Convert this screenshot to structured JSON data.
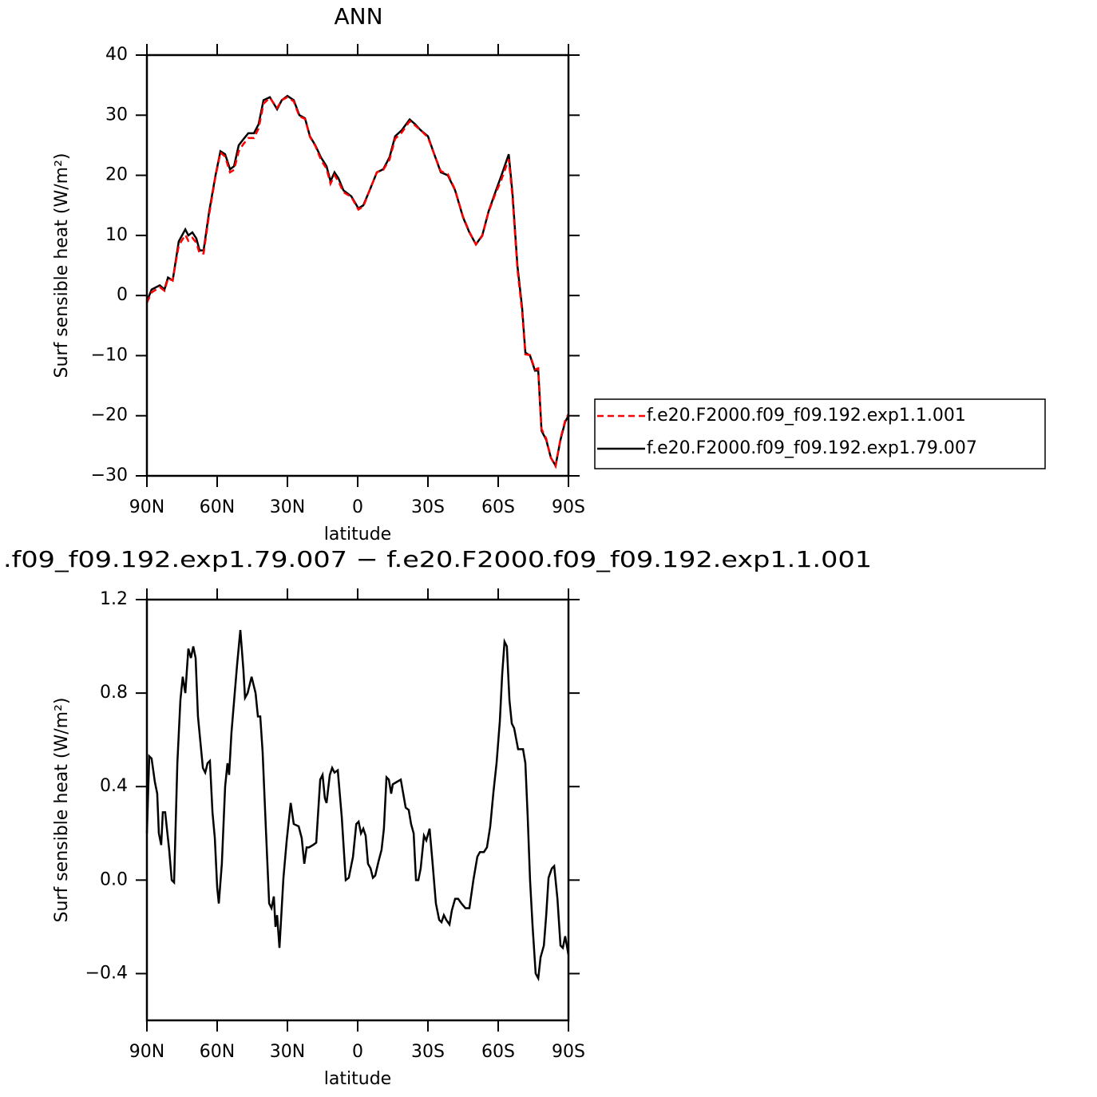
{
  "chart_data": [
    {
      "type": "line",
      "title": "ANN",
      "xlabel": "latitude",
      "ylabel": "Surf sensible heat (W/m²)",
      "xlim": [
        90,
        -90
      ],
      "xticks": [
        {
          "value": 90,
          "label": "90N"
        },
        {
          "value": 60,
          "label": "60N"
        },
        {
          "value": 30,
          "label": "30N"
        },
        0,
        {
          "value": -30,
          "label": "30S"
        },
        {
          "value": -60,
          "label": "60S"
        },
        {
          "value": -90,
          "label": "90S"
        }
      ],
      "ylim": [
        -30,
        40
      ],
      "yticks": [
        {
          "value": -30,
          "label": "−30"
        },
        {
          "value": -20,
          "label": "−20"
        },
        {
          "value": -10,
          "label": "−10"
        },
        0,
        10,
        20,
        30,
        40
      ],
      "grid": false,
      "legend": "right",
      "x": [
        90,
        88,
        84.5,
        82.5,
        81,
        79,
        76.4,
        73.6,
        72.3,
        70.6,
        68.9,
        67.5,
        65.8,
        63.4,
        60.7,
        58.6,
        56.6,
        54.5,
        52.8,
        50.8,
        48.8,
        46.7,
        44.3,
        42.3,
        40.2,
        37.5,
        34.4,
        32.4,
        30,
        27.3,
        24.9,
        22.5,
        20.4,
        18.1,
        15.7,
        13.3,
        11.6,
        9.9,
        8.2,
        6.1,
        2.7,
        -0.3,
        -2.4,
        -5.1,
        -8.2,
        -10.9,
        -13.6,
        -16,
        -18.8,
        -22.2,
        -24.5,
        -26.9,
        -30,
        -32.7,
        -35.5,
        -38.5,
        -41.6,
        -45,
        -47.7,
        -50.5,
        -53.2,
        -55.9,
        -58.6,
        -61.4,
        -64.5,
        -66.1,
        -68.2,
        -70.2,
        -71.6,
        -73.6,
        -75.7,
        -77.1,
        -78.5,
        -80.5,
        -82.5,
        -84.5,
        -86.6,
        -88.6,
        -90
      ],
      "series": [
        {
          "name": "f.e20.F2000.f09_f09.192.exp1.1.001",
          "color": "#ff0000",
          "dash": "dashed",
          "values": [
            -1.2,
            0.5,
            1.4,
            0.8,
            2.8,
            2.5,
            8.3,
            10.1,
            9.1,
            9.6,
            8.8,
            7,
            7,
            13.5,
            19.8,
            23.8,
            23.1,
            20.5,
            20.9,
            24,
            25.2,
            26.2,
            26.2,
            27.8,
            31.9,
            32.9,
            31.2,
            32.5,
            33.0,
            32.3,
            29.8,
            29.4,
            26.4,
            24.9,
            22.6,
            21.1,
            18.6,
            20.0,
            19.0,
            17.2,
            16.4,
            14.3,
            14.8,
            17.5,
            20.5,
            20.9,
            22.6,
            26.1,
            27.1,
            29.0,
            28.3,
            27.5,
            26.3,
            23.5,
            20.7,
            20.2,
            17.6,
            13.1,
            10.6,
            8.5,
            9.9,
            13.9,
            16.7,
            19.3,
            22.7,
            16.4,
            4.4,
            -2.6,
            -9.8,
            -9.9,
            -12.3,
            -12.1,
            -22.2,
            -23.8,
            -27,
            -28.4,
            -23.8,
            -20.8,
            -19.7
          ]
        },
        {
          "name": "f.e20.F2000.f09_f09.192.exp1.79.007",
          "color": "#000000",
          "dash": "solid",
          "values": [
            -1,
            1,
            1.7,
            1,
            3,
            2.5,
            9,
            11,
            10,
            10.5,
            9.5,
            7.5,
            7.5,
            14,
            20,
            24,
            23.5,
            21,
            21.5,
            25,
            26,
            27,
            27,
            28.5,
            32.5,
            33,
            31,
            32.5,
            33.2,
            32.5,
            30,
            29.5,
            26.5,
            25,
            23,
            21.5,
            19,
            20.5,
            19.5,
            17.5,
            16.5,
            14.5,
            15,
            17.5,
            20.5,
            21,
            23,
            26.5,
            27.5,
            29.3,
            28.5,
            27.5,
            26.5,
            23.5,
            20.5,
            20,
            17.5,
            13,
            10.5,
            8.5,
            10,
            14,
            17,
            20,
            23.5,
            17,
            5,
            -2,
            -9.5,
            -10,
            -12.5,
            -12.5,
            -22.5,
            -24,
            -27,
            -28.3,
            -24,
            -21,
            -20
          ]
        }
      ]
    },
    {
      "type": "line",
      "title": ".f09_f09.192.exp1.79.007 − f.e20.F2000.f09_f09.192.exp1.1.001",
      "xlabel": "latitude",
      "ylabel": "Surf sensible heat (W/m²)",
      "xlim": [
        90,
        -90
      ],
      "xticks": [
        {
          "value": 90,
          "label": "90N"
        },
        {
          "value": 60,
          "label": "60N"
        },
        {
          "value": 30,
          "label": "30N"
        },
        0,
        {
          "value": -30,
          "label": "30S"
        },
        {
          "value": -60,
          "label": "60S"
        },
        {
          "value": -90,
          "label": "90S"
        }
      ],
      "ylim": [
        -0.6,
        1.2
      ],
      "yticks": [
        {
          "value": -0.4,
          "label": "−0.4"
        },
        {
          "value": 0,
          "label": "0.0"
        },
        0.4,
        0.8,
        1.2
      ],
      "grid": false,
      "x": [
        90,
        89.0,
        88.0,
        86.6,
        85.6,
        84.9,
        83.9,
        83.2,
        82.2,
        80.5,
        79.4,
        78.4,
        77.0,
        75.7,
        74.7,
        73.6,
        72.3,
        71.2,
        70.2,
        69.2,
        68.2,
        66.1,
        65.1,
        64.1,
        63.1,
        62.0,
        61.0,
        60.0,
        59.3,
        58.0,
        56.6,
        55.6,
        54.9,
        53.9,
        52.5,
        51.5,
        50.1,
        48.8,
        48.1,
        47.0,
        45.3,
        43.6,
        42.6,
        41.6,
        40.6,
        39.2,
        37.8,
        36.8,
        35.8,
        35.1,
        34.4,
        33.4,
        31.7,
        30.3,
        28.6,
        27.3,
        25.2,
        23.9,
        22.8,
        21.8,
        20.8,
        19.1,
        17.7,
        16.0,
        15.0,
        14.0,
        13.3,
        11.9,
        10.9,
        9.9,
        8.5,
        6.8,
        5.1,
        3.8,
        2.0,
        0.6,
        -0.4,
        -1.4,
        -2.4,
        -3.4,
        -4.4,
        -5.5,
        -6.5,
        -7.5,
        -8.9,
        -10.2,
        -11.2,
        -12.3,
        -13.3,
        -14.3,
        -15.0,
        -16.7,
        -18.4,
        -20.5,
        -21.8,
        -22.8,
        -23.9,
        -24.9,
        -25.9,
        -26.9,
        -28.3,
        -29.3,
        -30.7,
        -32.0,
        -33.4,
        -34.8,
        -35.8,
        -36.8,
        -37.8,
        -39.2,
        -40.2,
        -41.6,
        -42.9,
        -44.3,
        -46.0,
        -47.7,
        -49.4,
        -51.1,
        -52.2,
        -53.9,
        -55.2,
        -56.6,
        -58.0,
        -59.3,
        -60.7,
        -61.7,
        -62.7,
        -63.7,
        -64.8,
        -65.8,
        -66.8,
        -68.5,
        -70.6,
        -71.6,
        -72.6,
        -73.6,
        -74.7,
        -76.0,
        -77.1,
        -78.1,
        -79.5,
        -80.5,
        -81.5,
        -82.9,
        -83.9,
        -85.3,
        -86.6,
        -87.6,
        -88.6,
        -90
      ],
      "series": [
        {
          "name": null,
          "color": "#000000",
          "dash": "solid",
          "values": [
            0.2,
            0.53,
            0.52,
            0.42,
            0.37,
            0.2,
            0.15,
            0.29,
            0.29,
            0.13,
            0,
            -0.01,
            0.5,
            0.77,
            0.87,
            0.8,
            0.99,
            0.95,
            1.0,
            0.95,
            0.7,
            0.48,
            0.46,
            0.5,
            0.51,
            0.29,
            0.18,
            -0.03,
            -0.1,
            0.07,
            0.4,
            0.5,
            0.45,
            0.63,
            0.8,
            0.92,
            1.07,
            0.9,
            0.78,
            0.8,
            0.87,
            0.8,
            0.7,
            0.7,
            0.55,
            0.22,
            -0.1,
            -0.12,
            -0.07,
            -0.2,
            -0.15,
            -0.29,
            0.01,
            0.17,
            0.33,
            0.24,
            0.23,
            0.18,
            0.07,
            0.14,
            0.14,
            0.15,
            0.16,
            0.43,
            0.45,
            0.35,
            0.33,
            0.45,
            0.48,
            0.46,
            0.47,
            0.27,
            0,
            0.01,
            0.1,
            0.24,
            0.25,
            0.2,
            0.22,
            0.19,
            0.07,
            0.05,
            0.01,
            0.02,
            0.08,
            0.13,
            0.22,
            0.44,
            0.43,
            0.37,
            0.41,
            0.42,
            0.43,
            0.31,
            0.3,
            0.24,
            0.2,
            0,
            0,
            0.05,
            0.19,
            0.17,
            0.22,
            0.07,
            -0.1,
            -0.17,
            -0.18,
            -0.15,
            -0.17,
            -0.19,
            -0.13,
            -0.08,
            -0.08,
            -0.1,
            -0.12,
            -0.12,
            0,
            0.1,
            0.12,
            0.12,
            0.14,
            0.23,
            0.38,
            0.5,
            0.68,
            0.88,
            1.02,
            1.0,
            0.77,
            0.67,
            0.65,
            0.56,
            0.56,
            0.5,
            0.27,
            0,
            -0.2,
            -0.4,
            -0.42,
            -0.33,
            -0.28,
            -0.15,
            0.01,
            0.05,
            0.06,
            -0.08,
            -0.28,
            -0.29,
            -0.24,
            -0.32
          ]
        }
      ]
    }
  ]
}
